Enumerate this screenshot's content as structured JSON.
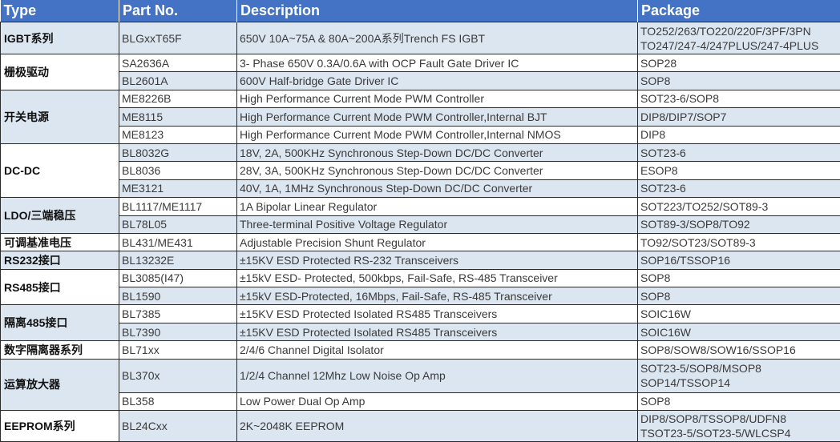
{
  "header": {
    "type": "Type",
    "part": "Part No.",
    "description": "Description",
    "package": "Package"
  },
  "colors": {
    "header": "#4472c4",
    "row_shade": "#dce6f1"
  },
  "groups": [
    {
      "type": "IGBT系列",
      "rows": [
        {
          "part": "BLGxxT65F",
          "description": "650V 10A~75A & 80A~200A系列Trench FS IGBT",
          "package": [
            "TO252/263/TO220/220F/3PF/3PN",
            "TO247/247-4/247PLUS/247-4PLUS"
          ]
        }
      ]
    },
    {
      "type": "栅极驱动",
      "rows": [
        {
          "part": "SA2636A",
          "description": "3- Phase 650V 0.3A/0.6A with OCP Fault Gate Driver IC",
          "package": [
            "SOP28"
          ]
        },
        {
          "part": "BL2601A",
          "description": "600V Half-bridge Gate Driver IC",
          "package": [
            "SOP8"
          ]
        }
      ]
    },
    {
      "type": "开关电源",
      "rows": [
        {
          "part": "ME8226B",
          "description": "High Performance Current Mode PWM Controller",
          "package": [
            "SOT23-6/SOP8"
          ]
        },
        {
          "part": "ME8115",
          "description": "High Performance Current Mode PWM Controller,Internal BJT",
          "package": [
            "DIP8/DIP7/SOP7"
          ]
        },
        {
          "part": "ME8123",
          "description": "High Performance Current Mode PWM Controller,Internal NMOS",
          "package": [
            "DIP8"
          ]
        }
      ]
    },
    {
      "type": "DC-DC",
      "rows": [
        {
          "part": "BL8032G",
          "description": "18V, 2A, 500KHz Synchronous Step-Down DC/DC Converter",
          "package": [
            "SOT23-6"
          ]
        },
        {
          "part": "BL8036",
          "description": "28V, 3A, 500KHz Synchronous Step-Down DC/DC Converter",
          "package": [
            "ESOP8"
          ]
        },
        {
          "part": "ME3121",
          "description": "40V, 1A, 1MHz Synchronous Step-Down DC/DC Converter",
          "package": [
            "SOT23-6"
          ]
        }
      ]
    },
    {
      "type": "LDO/三端稳压",
      "rows": [
        {
          "part": "BL1117/ME1117",
          "description": "1A Bipolar Linear Regulator",
          "package": [
            "SOT223/TO252/SOT89-3"
          ]
        },
        {
          "part": "BL78L05",
          "description": "Three-terminal Positive Voltage Regulator",
          "package": [
            "SOT89-3/SOP8/TO92"
          ]
        }
      ]
    },
    {
      "type": "可调基准电压",
      "rows": [
        {
          "part": "BL431/ME431",
          "description": "Adjustable Precision Shunt Regulator",
          "package": [
            "TO92/SOT23/SOT89-3"
          ]
        }
      ]
    },
    {
      "type": "RS232接口",
      "rows": [
        {
          "part": "BL13232E",
          "description": "±15KV ESD Protected RS-232 Transceivers",
          "package": [
            "SOP16/TSSOP16"
          ]
        }
      ]
    },
    {
      "type": "RS485接口",
      "rows": [
        {
          "part": "BL3085(I47)",
          "description": "±15kV ESD- Protected, 500kbps, Fail-Safe, RS-485 Transceiver",
          "package": [
            "SOP8"
          ]
        },
        {
          "part": "BL1590",
          "description": "±15kV ESD-Protected, 16Mbps, Fail-Safe, RS-485 Transceiver",
          "package": [
            "SOP8"
          ]
        }
      ]
    },
    {
      "type": "隔离485接口",
      "rows": [
        {
          "part": "BL7385",
          "description": "±15KV ESD Protected Isolated RS485 Transceivers",
          "package": [
            "SOIC16W"
          ]
        },
        {
          "part": "BL7390",
          "description": "±15KV ESD Protected Isolated RS485 Transceivers",
          "package": [
            "SOIC16W"
          ]
        }
      ]
    },
    {
      "type": "数字隔离器系列",
      "rows": [
        {
          "part": "BL71xx",
          "description": "2/4/6 Channel Digital Isolator",
          "package": [
            "SOP8/SOW8/SOW16/SSOP16"
          ]
        }
      ]
    },
    {
      "type": "运算放大器",
      "rows": [
        {
          "part": "BL370x",
          "description": "1/2/4 Channel 12Mhz Low Noise Op Amp",
          "package": [
            "SOT23-5/SOP8/MSOP8",
            "SOP14/TSSOP14"
          ]
        },
        {
          "part": "BL358",
          "description": "Low Power Dual Op Amp",
          "package": [
            "SOP8"
          ]
        }
      ]
    },
    {
      "type": "EEPROM系列",
      "rows": [
        {
          "part": "BL24Cxx",
          "description": "2K~2048K EEPROM",
          "package": [
            "DIP8/SOP8/TSSOP8/UDFN8",
            "TSOT23-5/SOT23-5/WLCSP4"
          ]
        }
      ]
    }
  ]
}
